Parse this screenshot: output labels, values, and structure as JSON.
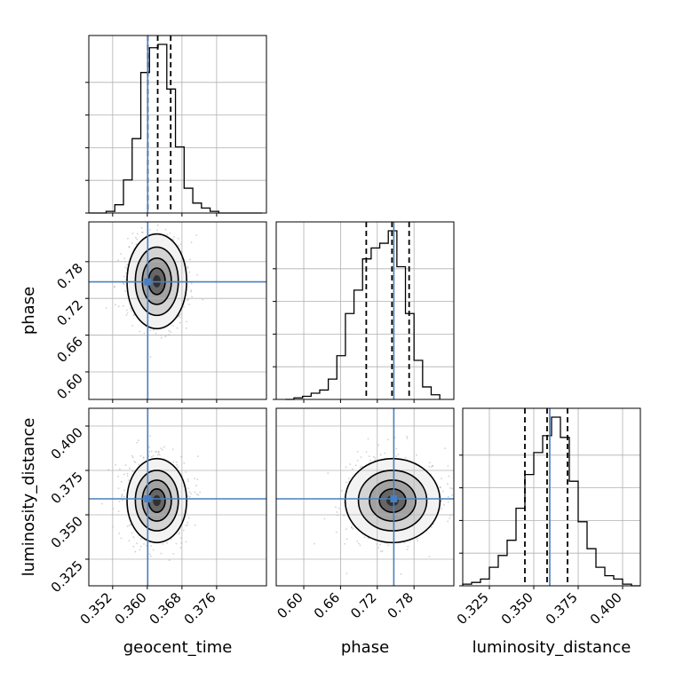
{
  "chart_data": {
    "type": "corner",
    "colors": {
      "truth": "#4a7fbf",
      "hist": "#000000",
      "grid": "#b0b0b0",
      "points": "#9a9a9a"
    },
    "parameters": [
      {
        "name": "geocent_time",
        "label": "geocent_time",
        "range": [
          0.3465,
          0.3875
        ],
        "ticks": [
          0.352,
          0.36,
          0.368,
          0.376
        ],
        "tick_labels": [
          "0.352",
          "0.360",
          "0.368",
          "0.376"
        ],
        "truth": 0.3601,
        "quantiles": [
          0.3601,
          0.3624,
          0.3654
        ]
      },
      {
        "name": "phase",
        "label": "phase",
        "range": [
          0.555,
          0.845
        ],
        "ticks": [
          0.6,
          0.66,
          0.72,
          0.78
        ],
        "tick_labels": [
          "0.60",
          "0.66",
          "0.72",
          "0.78"
        ],
        "truth": 0.747,
        "quantiles": [
          0.702,
          0.744,
          0.772
        ]
      },
      {
        "name": "luminosity_distance",
        "label": "luminosity_distance",
        "range": [
          0.31,
          0.41
        ],
        "ticks": [
          0.325,
          0.35,
          0.375,
          0.4
        ],
        "tick_labels": [
          "0.325",
          "0.350",
          "0.375",
          "0.400"
        ],
        "truth": 0.359,
        "quantiles": [
          0.345,
          0.3575,
          0.369
        ]
      }
    ],
    "histograms": [
      {
        "parameter": "geocent_time",
        "bin_edges": [
          0.3465,
          0.3485,
          0.3505,
          0.3525,
          0.3545,
          0.3565,
          0.3585,
          0.3605,
          0.3625,
          0.3645,
          0.3665,
          0.3685,
          0.3705,
          0.3725,
          0.3745,
          0.3765,
          0.3785,
          0.3805,
          0.3825,
          0.3845,
          0.3865
        ],
        "counts": [
          0,
          0,
          1,
          5,
          20,
          45,
          85,
          100,
          102,
          75,
          40,
          15,
          6,
          3,
          1,
          0,
          0,
          0,
          0,
          0
        ]
      },
      {
        "parameter": "phase",
        "bin_edges": [
          0.57,
          0.584,
          0.598,
          0.612,
          0.626,
          0.64,
          0.654,
          0.668,
          0.682,
          0.696,
          0.71,
          0.724,
          0.738,
          0.752,
          0.766,
          0.78,
          0.794,
          0.808,
          0.822
        ],
        "counts": [
          0,
          1,
          2,
          4,
          6,
          13,
          28,
          55,
          70,
          90,
          97,
          100,
          108,
          85,
          55,
          25,
          8,
          3
        ]
      },
      {
        "parameter": "luminosity_distance",
        "bin_edges": [
          0.31,
          0.315,
          0.32,
          0.325,
          0.33,
          0.335,
          0.34,
          0.345,
          0.35,
          0.355,
          0.36,
          0.365,
          0.37,
          0.375,
          0.38,
          0.385,
          0.39,
          0.395,
          0.4,
          0.405,
          0.41
        ],
        "counts": [
          1,
          2,
          4,
          11,
          18,
          27,
          46,
          66,
          79,
          89,
          100,
          88,
          62,
          38,
          22,
          11,
          6,
          4,
          1,
          0
        ]
      }
    ],
    "scatter_2d": [
      {
        "x": "geocent_time",
        "y": "phase",
        "center": [
          0.3622,
          0.748
        ],
        "sigma": [
          0.0032,
          0.036
        ],
        "contour_levels": 4
      },
      {
        "x": "geocent_time",
        "y": "luminosity_distance",
        "center": [
          0.3622,
          0.358
        ],
        "sigma": [
          0.0032,
          0.011
        ],
        "contour_levels": 4
      },
      {
        "x": "phase",
        "y": "luminosity_distance",
        "center": [
          0.745,
          0.358
        ],
        "sigma": [
          0.036,
          0.011
        ],
        "contour_levels": 4
      }
    ],
    "grid": true
  }
}
